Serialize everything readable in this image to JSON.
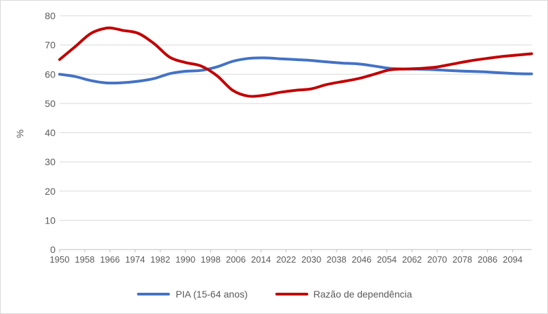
{
  "chart_data": {
    "type": "line",
    "xlabel": "",
    "ylabel": "%",
    "ylim": [
      0,
      80
    ],
    "yticks": [
      0,
      10,
      20,
      30,
      40,
      50,
      60,
      70,
      80
    ],
    "xlim": [
      1950,
      2100
    ],
    "xticks": [
      "1950",
      "1958",
      "1966",
      "1974",
      "1982",
      "1990",
      "1998",
      "2006",
      "2014",
      "2022",
      "2030",
      "2038",
      "2046",
      "2054",
      "2062",
      "2070",
      "2078",
      "2086",
      "2094"
    ],
    "grid": "horizontal",
    "legend": "bottom",
    "series": [
      {
        "name": "PIA (15-64 anos)",
        "color": "#4472c4",
        "x": [
          1950,
          1955,
          1960,
          1965,
          1970,
          1975,
          1980,
          1985,
          1990,
          1995,
          2000,
          2005,
          2010,
          2015,
          2020,
          2025,
          2030,
          2035,
          2040,
          2045,
          2050,
          2055,
          2060,
          2065,
          2070,
          2075,
          2080,
          2085,
          2090,
          2095,
          2100
        ],
        "values": [
          60.0,
          59.2,
          57.8,
          57.0,
          57.1,
          57.6,
          58.5,
          60.2,
          61.0,
          61.3,
          62.5,
          64.4,
          65.4,
          65.6,
          65.3,
          65.0,
          64.7,
          64.2,
          63.8,
          63.5,
          62.8,
          62.0,
          61.8,
          61.7,
          61.5,
          61.2,
          61.0,
          60.8,
          60.5,
          60.2,
          60.1
        ]
      },
      {
        "name": "Razão de dependência",
        "color": "#c00000",
        "x": [
          1950,
          1955,
          1960,
          1965,
          1968,
          1970,
          1975,
          1980,
          1985,
          1990,
          1995,
          2000,
          2005,
          2010,
          2015,
          2020,
          2025,
          2030,
          2035,
          2040,
          2045,
          2050,
          2055,
          2060,
          2065,
          2070,
          2075,
          2080,
          2085,
          2090,
          2095,
          2100
        ],
        "values": [
          65.0,
          69.5,
          74.0,
          75.8,
          75.5,
          75.0,
          74.0,
          70.5,
          65.8,
          64.0,
          62.8,
          59.5,
          54.5,
          52.5,
          52.8,
          53.8,
          54.5,
          55.0,
          56.5,
          57.5,
          58.5,
          60.0,
          61.5,
          61.8,
          62.0,
          62.5,
          63.5,
          64.5,
          65.3,
          66.0,
          66.5,
          67.0
        ]
      }
    ]
  }
}
